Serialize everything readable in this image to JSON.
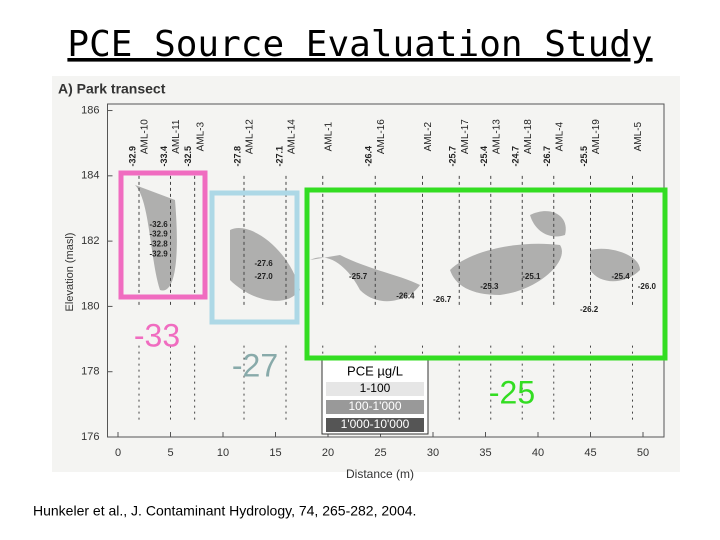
{
  "title": "PCE Source Evaluation Study",
  "chart_data": {
    "type": "section",
    "panel_title": "A) Park transect",
    "y_label": "Elevation (masl)",
    "x_label": "Distance (m)",
    "xlim": [
      -1,
      52
    ],
    "ylim": [
      176,
      186.2
    ],
    "xticks": [
      0,
      5,
      10,
      15,
      20,
      25,
      30,
      35,
      40,
      45,
      50
    ],
    "yticks": [
      176,
      178,
      180,
      182,
      184,
      186
    ],
    "wells": [
      {
        "name": "AML-10",
        "x": 2,
        "top": "-32.9"
      },
      {
        "name": "AML-11",
        "x": 5,
        "top": "-33.4"
      },
      {
        "name": "AML-3",
        "x": 7.3,
        "top": "-32.5"
      },
      {
        "name": "AML-12",
        "x": 12,
        "top": "-27.8"
      },
      {
        "name": "AML-14",
        "x": 16,
        "top": "-27.1"
      },
      {
        "name": "AML-1",
        "x": 19.5
      },
      {
        "name": "AML-16",
        "x": 24.5,
        "top": "-26.4"
      },
      {
        "name": "AML-2",
        "x": 29
      },
      {
        "name": "AML-17",
        "x": 32.5,
        "top": "-25.7"
      },
      {
        "name": "AML-13",
        "x": 35.5,
        "top": "-25.4"
      },
      {
        "name": "AML-18",
        "x": 38.5,
        "top": "-24.7"
      },
      {
        "name": "AML-4",
        "x": 41.5,
        "top": "-26.7"
      },
      {
        "name": "AML-19",
        "x": 45,
        "top": "-25.5"
      },
      {
        "name": "AML-5",
        "x": 49
      }
    ],
    "samples": [
      {
        "x": 3,
        "y": 182.5,
        "label": "-32.6"
      },
      {
        "x": 3,
        "y": 182.2,
        "label": "-32.9"
      },
      {
        "x": 3,
        "y": 181.9,
        "label": "-32.8"
      },
      {
        "x": 3,
        "y": 181.6,
        "label": "-32.9"
      },
      {
        "x": 13,
        "y": 181.3,
        "label": "-27.6"
      },
      {
        "x": 13,
        "y": 180.9,
        "label": "-27.0"
      },
      {
        "x": 22,
        "y": 180.9,
        "label": "-25.7"
      },
      {
        "x": 26.5,
        "y": 180.3,
        "label": "-26.4"
      },
      {
        "x": 30,
        "y": 180.2,
        "label": "-26.7"
      },
      {
        "x": 34.5,
        "y": 180.6,
        "label": "-25.3"
      },
      {
        "x": 38.5,
        "y": 180.9,
        "label": "-25.1"
      },
      {
        "x": 47,
        "y": 180.9,
        "label": "-25.4"
      },
      {
        "x": 49.5,
        "y": 180.6,
        "label": "-26.0"
      },
      {
        "x": 44,
        "y": 179.9,
        "label": "-26.2"
      }
    ],
    "legend_title": "PCE µg/L",
    "legend": [
      "1-100",
      "100-1'000",
      "1'000-10'000"
    ],
    "boxes": [
      {
        "label": "-33",
        "color": "#f06cc0"
      },
      {
        "label": "-27",
        "color": "#add8e6"
      },
      {
        "label": "-25",
        "color": "#33dd22"
      }
    ]
  },
  "citation": "Hunkeler et al., J. Contaminant Hydrology, 74, 265-282, 2004."
}
